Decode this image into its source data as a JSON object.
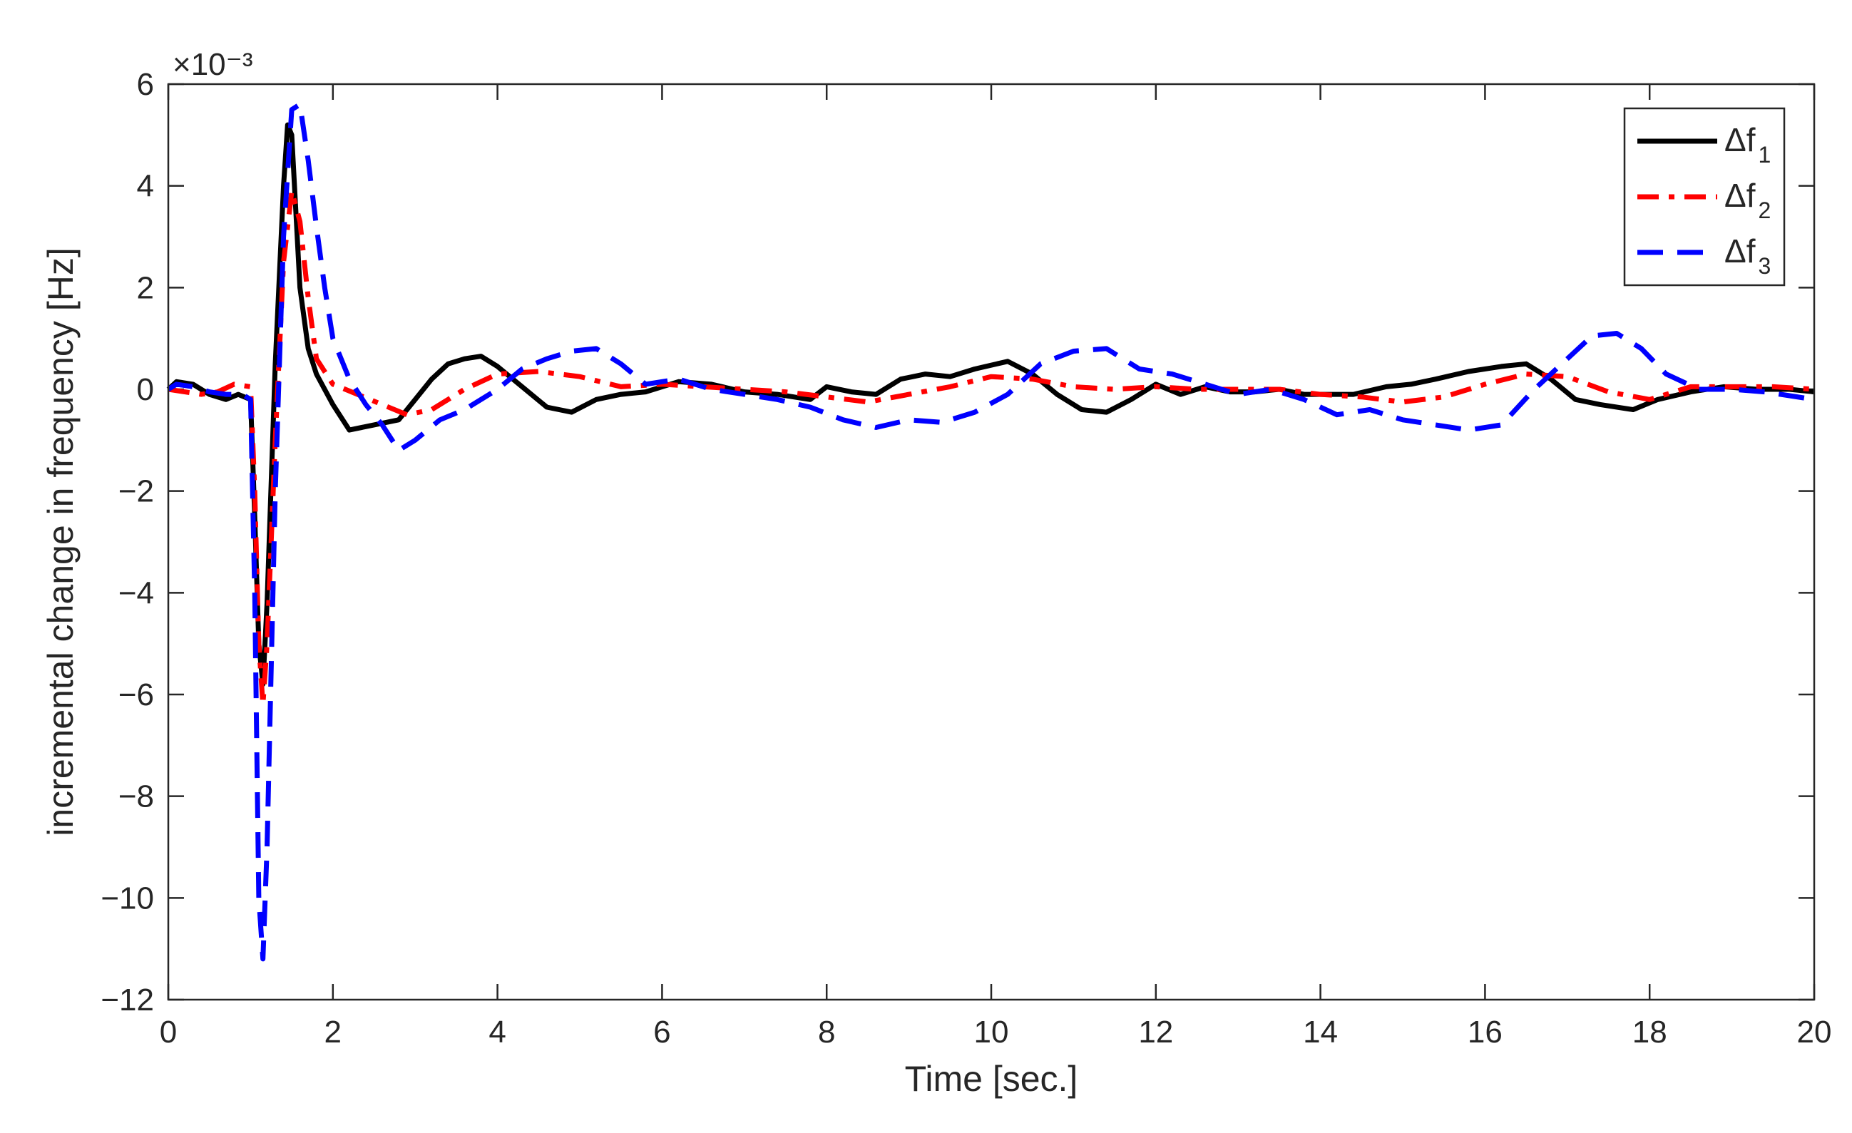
{
  "chart_data": {
    "type": "line",
    "title": "",
    "xlabel": "Time [sec.]",
    "ylabel": "incremental change in frequency [Hz]",
    "y_exponent_label": "×10⁻³",
    "y_scale_factor": 0.001,
    "xlim": [
      0,
      20
    ],
    "ylim": [
      -12,
      6
    ],
    "xticks": [
      0,
      2,
      4,
      6,
      8,
      10,
      12,
      14,
      16,
      18,
      20
    ],
    "yticks": [
      -12,
      -10,
      -8,
      -6,
      -4,
      -2,
      0,
      2,
      4,
      6
    ],
    "xtick_labels": [
      "0",
      "2",
      "4",
      "6",
      "8",
      "10",
      "12",
      "14",
      "16",
      "18",
      "20"
    ],
    "ytick_labels": [
      "−12",
      "−10",
      "−8",
      "−6",
      "−4",
      "−2",
      "0",
      "2",
      "4",
      "6"
    ],
    "grid": false,
    "legend_position": "top-right",
    "series": [
      {
        "name": "Δf1",
        "legend_main": "Δf",
        "legend_sub": "1",
        "color": "#000000",
        "line_style": "solid",
        "x": [
          0,
          0.1,
          0.3,
          0.5,
          0.7,
          0.85,
          1.0,
          1.05,
          1.1,
          1.15,
          1.2,
          1.3,
          1.4,
          1.45,
          1.5,
          1.6,
          1.7,
          1.8,
          2.0,
          2.2,
          2.5,
          2.8,
          3.0,
          3.2,
          3.4,
          3.6,
          3.8,
          4.0,
          4.3,
          4.6,
          4.9,
          5.2,
          5.5,
          5.8,
          6.2,
          6.6,
          7.0,
          7.4,
          7.8,
          8.0,
          8.3,
          8.6,
          8.9,
          9.2,
          9.5,
          9.8,
          10.2,
          10.5,
          10.8,
          11.1,
          11.4,
          11.7,
          12.0,
          12.3,
          12.6,
          12.9,
          13.2,
          13.5,
          13.8,
          14.0,
          14.4,
          14.8,
          15.1,
          15.4,
          15.8,
          16.2,
          16.5,
          16.8,
          17.1,
          17.4,
          17.8,
          18.1,
          18.5,
          18.9,
          19.3,
          19.7,
          20
        ],
        "y": [
          0,
          0.15,
          0.1,
          -0.1,
          -0.2,
          -0.1,
          -0.2,
          -2.5,
          -5.0,
          -5.8,
          -4.2,
          0.5,
          4.0,
          5.2,
          5.0,
          2.0,
          0.8,
          0.3,
          -0.3,
          -0.8,
          -0.7,
          -0.6,
          -0.2,
          0.2,
          0.5,
          0.6,
          0.65,
          0.45,
          0.05,
          -0.35,
          -0.45,
          -0.2,
          -0.1,
          -0.05,
          0.15,
          0.1,
          -0.05,
          -0.1,
          -0.2,
          0.05,
          -0.05,
          -0.1,
          0.2,
          0.3,
          0.25,
          0.4,
          0.55,
          0.3,
          -0.1,
          -0.4,
          -0.45,
          -0.2,
          0.1,
          -0.1,
          0.05,
          -0.05,
          -0.05,
          0.0,
          -0.1,
          -0.1,
          -0.1,
          0.05,
          0.1,
          0.2,
          0.35,
          0.45,
          0.5,
          0.2,
          -0.2,
          -0.3,
          -0.4,
          -0.2,
          -0.05,
          0.05,
          0.0,
          0.0,
          -0.05
        ]
      },
      {
        "name": "Δf2",
        "legend_main": "Δf",
        "legend_sub": "2",
        "color": "#ff0000",
        "line_style": "dash-dot",
        "x": [
          0,
          0.2,
          0.4,
          0.6,
          0.8,
          1.0,
          1.05,
          1.1,
          1.15,
          1.2,
          1.3,
          1.4,
          1.5,
          1.6,
          1.7,
          1.8,
          2.0,
          2.3,
          2.6,
          2.9,
          3.2,
          3.6,
          4.0,
          4.5,
          5.0,
          5.5,
          6.0,
          6.5,
          7.0,
          7.5,
          8.0,
          8.5,
          9.0,
          9.5,
          10.0,
          10.5,
          11.0,
          11.5,
          12.0,
          12.5,
          13.0,
          13.5,
          14.0,
          14.5,
          15.0,
          15.5,
          16.0,
          16.5,
          17.0,
          17.5,
          18.0,
          18.5,
          19.0,
          19.5,
          20
        ],
        "y": [
          0,
          -0.05,
          -0.1,
          -0.05,
          0.1,
          0.05,
          -2.0,
          -5.0,
          -6.2,
          -5.0,
          -1.0,
          2.5,
          3.9,
          3.3,
          1.8,
          0.6,
          0.1,
          -0.1,
          -0.3,
          -0.5,
          -0.4,
          0.0,
          0.3,
          0.35,
          0.25,
          0.05,
          0.1,
          0.05,
          0.0,
          -0.05,
          -0.15,
          -0.25,
          -0.1,
          0.05,
          0.25,
          0.2,
          0.05,
          0.0,
          0.05,
          0.0,
          0.0,
          0.0,
          -0.1,
          -0.15,
          -0.25,
          -0.15,
          0.1,
          0.3,
          0.25,
          -0.05,
          -0.2,
          0.05,
          0.05,
          0.05,
          0.0
        ]
      },
      {
        "name": "Δf3",
        "legend_main": "Δf",
        "legend_sub": "3",
        "color": "#0000ff",
        "line_style": "dashed",
        "x": [
          0,
          0.1,
          0.3,
          0.5,
          0.7,
          0.9,
          1.0,
          1.05,
          1.1,
          1.15,
          1.2,
          1.3,
          1.4,
          1.5,
          1.6,
          1.7,
          1.8,
          1.9,
          2.0,
          2.2,
          2.4,
          2.6,
          2.8,
          3.0,
          3.3,
          3.6,
          4.0,
          4.3,
          4.6,
          4.9,
          5.2,
          5.5,
          5.8,
          6.2,
          6.6,
          7.0,
          7.4,
          7.8,
          8.2,
          8.6,
          9.0,
          9.4,
          9.8,
          10.2,
          10.6,
          11.0,
          11.4,
          11.8,
          12.2,
          12.6,
          13.0,
          13.4,
          13.8,
          14.2,
          14.6,
          15.0,
          15.4,
          15.8,
          16.2,
          16.6,
          17.0,
          17.3,
          17.6,
          17.9,
          18.2,
          18.6,
          19.0,
          19.4,
          20
        ],
        "y": [
          0,
          0.1,
          0.05,
          -0.05,
          -0.1,
          -0.1,
          -0.2,
          -4.0,
          -10.0,
          -11.2,
          -9.0,
          -2.0,
          3.0,
          5.5,
          5.6,
          4.5,
          3.2,
          2.0,
          1.0,
          0.2,
          -0.3,
          -0.7,
          -1.2,
          -1.0,
          -0.6,
          -0.4,
          0.0,
          0.4,
          0.6,
          0.75,
          0.8,
          0.5,
          0.1,
          0.2,
          0.0,
          -0.1,
          -0.2,
          -0.35,
          -0.6,
          -0.75,
          -0.6,
          -0.65,
          -0.45,
          -0.1,
          0.5,
          0.75,
          0.8,
          0.4,
          0.3,
          0.1,
          -0.1,
          0.0,
          -0.2,
          -0.5,
          -0.4,
          -0.6,
          -0.7,
          -0.8,
          -0.7,
          0.0,
          0.6,
          1.05,
          1.1,
          0.8,
          0.3,
          0.0,
          0.0,
          -0.05,
          -0.2
        ]
      }
    ]
  }
}
